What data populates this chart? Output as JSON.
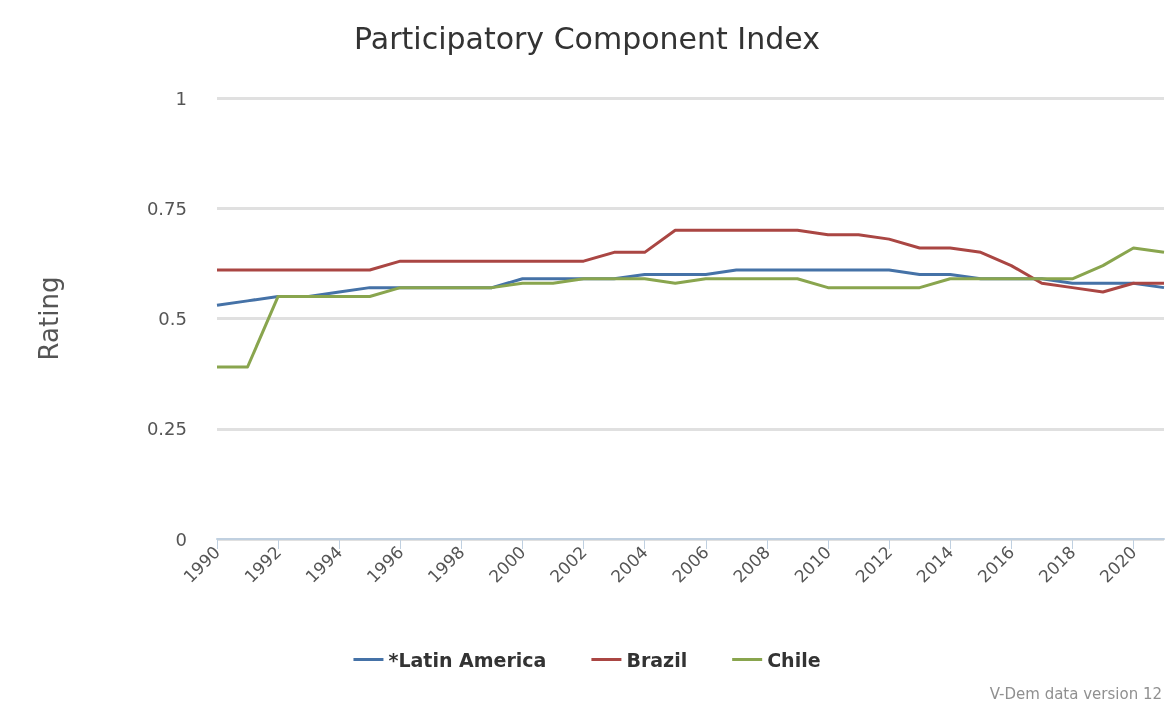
{
  "chart_data": {
    "type": "line",
    "title": "Participatory Component Index",
    "ylabel": "Rating",
    "x": [
      1990,
      1991,
      1992,
      1993,
      1994,
      1995,
      1996,
      1997,
      1998,
      1999,
      2000,
      2001,
      2002,
      2003,
      2004,
      2005,
      2006,
      2007,
      2008,
      2009,
      2010,
      2011,
      2012,
      2013,
      2014,
      2015,
      2016,
      2017,
      2018,
      2019,
      2020,
      2021
    ],
    "series": [
      {
        "name": "*Latin America",
        "color": "#4572a7",
        "values": [
          0.53,
          0.54,
          0.55,
          0.55,
          0.56,
          0.57,
          0.57,
          0.57,
          0.57,
          0.57,
          0.59,
          0.59,
          0.59,
          0.59,
          0.6,
          0.6,
          0.6,
          0.61,
          0.61,
          0.61,
          0.61,
          0.61,
          0.61,
          0.6,
          0.6,
          0.59,
          0.59,
          0.59,
          0.58,
          0.58,
          0.58,
          0.57
        ]
      },
      {
        "name": "Brazil",
        "color": "#aa4643",
        "values": [
          0.61,
          0.61,
          0.61,
          0.61,
          0.61,
          0.61,
          0.63,
          0.63,
          0.63,
          0.63,
          0.63,
          0.63,
          0.63,
          0.65,
          0.65,
          0.7,
          0.7,
          0.7,
          0.7,
          0.7,
          0.69,
          0.69,
          0.68,
          0.66,
          0.66,
          0.65,
          0.62,
          0.58,
          0.57,
          0.56,
          0.58,
          0.58
        ]
      },
      {
        "name": "Chile",
        "color": "#89a54e",
        "values": [
          0.39,
          0.39,
          0.55,
          0.55,
          0.55,
          0.55,
          0.57,
          0.57,
          0.57,
          0.57,
          0.58,
          0.58,
          0.59,
          0.59,
          0.59,
          0.58,
          0.59,
          0.59,
          0.59,
          0.59,
          0.57,
          0.57,
          0.57,
          0.57,
          0.59,
          0.59,
          0.59,
          0.59,
          0.59,
          0.62,
          0.66,
          0.65
        ]
      }
    ],
    "xlim": [
      1990,
      2021
    ],
    "xticks": [
      1990,
      1992,
      1994,
      1996,
      1998,
      2000,
      2002,
      2004,
      2006,
      2008,
      2010,
      2012,
      2014,
      2016,
      2018,
      2020
    ],
    "ylim": [
      0,
      1
    ],
    "yticks": [
      0,
      0.25,
      0.5,
      0.75,
      1
    ],
    "grid": "y",
    "legend": "bottom",
    "marker": "none",
    "line_style": "solid",
    "annotations": [
      "V-Dem data version 12"
    ]
  }
}
